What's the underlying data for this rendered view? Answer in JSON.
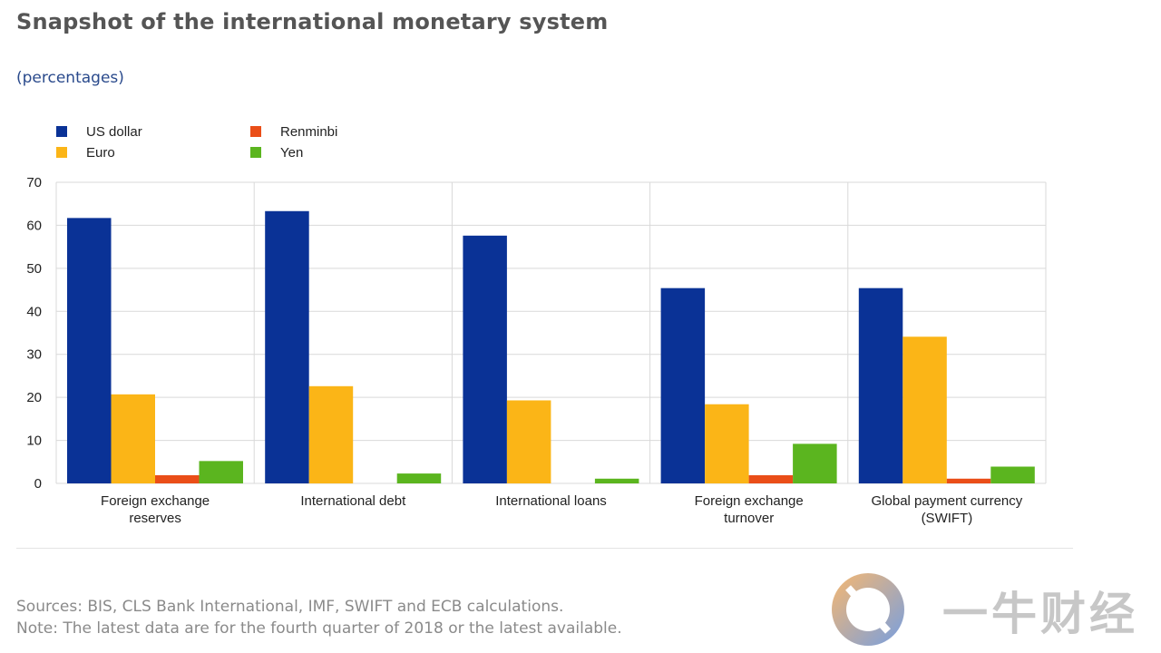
{
  "title": "Snapshot of the international monetary system",
  "subtitle": "(percentages)",
  "notes": {
    "sources": "Sources: BIS, CLS Bank International, IMF, SWIFT and ECB calculations.",
    "note": "Note: The latest data are for the fourth quarter of 2018 or the latest available."
  },
  "watermark": {
    "text": "一牛财经"
  },
  "colors": {
    "us_dollar": "#0a3296",
    "euro": "#fbb517",
    "renminbi": "#ea4e18",
    "yen": "#5bb51f",
    "grid": "#d9d9d9"
  },
  "chart_data": {
    "type": "bar",
    "title": "Snapshot of the international monetary system",
    "subtitle": "(percentages)",
    "categories": [
      [
        "Foreign exchange",
        "reserves"
      ],
      [
        "International debt"
      ],
      [
        "International loans"
      ],
      [
        "Foreign exchange",
        "turnover"
      ],
      [
        "Global payment currency",
        "(SWIFT)"
      ]
    ],
    "series": [
      {
        "name": "US dollar",
        "color": "#0a3296",
        "values": [
          61.7,
          63.3,
          57.6,
          45.4,
          45.4
        ]
      },
      {
        "name": "Euro",
        "color": "#fbb517",
        "values": [
          20.7,
          22.6,
          19.3,
          18.4,
          34.1
        ]
      },
      {
        "name": "Renminbi",
        "color": "#ea4e18",
        "values": [
          1.9,
          0.0,
          0.0,
          1.9,
          1.1
        ]
      },
      {
        "name": "Yen",
        "color": "#5bb51f",
        "values": [
          5.2,
          2.3,
          1.1,
          9.2,
          3.9
        ]
      }
    ],
    "legend_order": [
      "US dollar",
      "Renminbi",
      "Euro",
      "Yen"
    ],
    "ylim": [
      0,
      70
    ],
    "yticks": [
      0,
      10,
      20,
      30,
      40,
      50,
      60,
      70
    ],
    "grid": true,
    "legend_position": "top-left",
    "xlabel": "",
    "ylabel": ""
  }
}
